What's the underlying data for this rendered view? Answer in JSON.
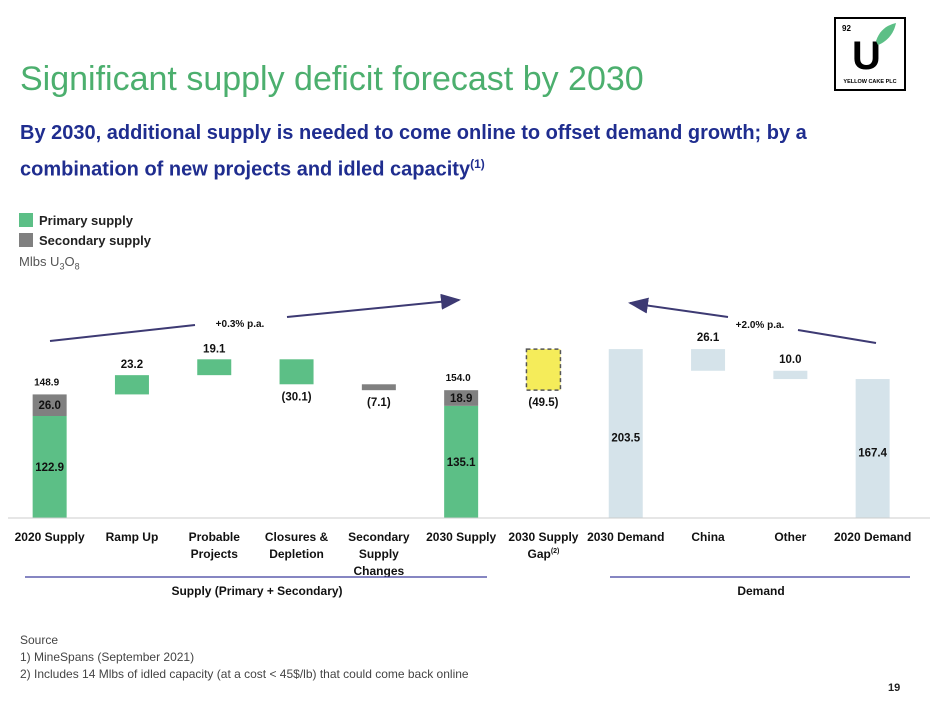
{
  "slide": {
    "title": "Significant supply deficit forecast by 2030",
    "subtitle": "By 2030, additional supply is needed to come online to offset demand growth; by a combination of new projects and idled capacity",
    "subtitle_footnote": "(1)",
    "unit_prefix": "Mlbs U",
    "unit_sub1": "3",
    "unit_mid": "O",
    "unit_sub2": "8",
    "page_number": "19"
  },
  "logo": {
    "number": "92",
    "letter": "U",
    "text": "YELLOW CAKE PLC"
  },
  "legend": [
    {
      "label": "Primary supply",
      "color": "#5cbf86"
    },
    {
      "label": "Secondary supply",
      "color": "#808080"
    }
  ],
  "source": {
    "heading": "Source",
    "notes": [
      "1)  MineSpans (September 2021)",
      "2)  Includes 14 Mlbs of idled capacity (at a cost < 45$/lb) that could come back online"
    ]
  },
  "chart_data": {
    "type": "bar",
    "subtype": "waterfall",
    "categories": [
      "2020 Supply",
      "Ramp Up",
      "Probable Projects",
      "Closures & Depletion",
      "Secondary Supply Changes",
      "2030 Supply",
      "2030 Supply Gap",
      "2030 Demand",
      "China",
      "Other",
      "2020 Demand"
    ],
    "category_superscripts": {
      "2030 Supply Gap": "(2)"
    },
    "bars": [
      {
        "category": "2020 Supply",
        "kind": "total",
        "primary": 122.9,
        "secondary": 26.0,
        "total": 148.9
      },
      {
        "category": "Ramp Up",
        "kind": "change",
        "series": "primary",
        "label": "23.2",
        "from": 148.9,
        "to": 172.1
      },
      {
        "category": "Probable Projects",
        "kind": "change",
        "series": "primary",
        "label": "19.1",
        "from": 172.1,
        "to": 191.2
      },
      {
        "category": "Closures & Depletion",
        "kind": "change",
        "series": "primary",
        "label": "(30.1)",
        "from": 191.2,
        "to": 161.1
      },
      {
        "category": "Secondary Supply Changes",
        "kind": "change",
        "series": "secondary",
        "label": "(7.1)",
        "from": 161.1,
        "to": 154.0
      },
      {
        "category": "2030 Supply",
        "kind": "total",
        "primary": 135.1,
        "secondary": 18.9,
        "total": 154.0
      },
      {
        "category": "2030 Supply Gap",
        "kind": "gap",
        "label": "(49.5)",
        "from": 154.0,
        "to": 203.5
      },
      {
        "category": "2030 Demand",
        "kind": "demand_total",
        "value": 203.5,
        "label": "203.5"
      },
      {
        "category": "China",
        "kind": "demand_change",
        "label": "26.1",
        "from": 177.4,
        "to": 203.5
      },
      {
        "category": "Other",
        "kind": "demand_change",
        "label": "10.0",
        "from": 167.4,
        "to": 177.4
      },
      {
        "category": "2020 Demand",
        "kind": "demand_total",
        "value": 167.4,
        "label": "167.4"
      }
    ],
    "annotations": [
      {
        "text": "+0.3% p.a.",
        "from": "2020 Supply",
        "to": "2030 Supply"
      },
      {
        "text": "+2.0% p.a.",
        "from": "2020 Demand",
        "to": "2030 Demand"
      }
    ],
    "groups": [
      {
        "label": "Supply (Primary + Secondary)",
        "categories": [
          "2020 Supply",
          "Secondary Supply Changes",
          "2030 Supply"
        ]
      },
      {
        "label": "Demand",
        "categories": [
          "2030 Demand",
          "2020 Demand"
        ]
      }
    ],
    "colors": {
      "primary": "#5cbf86",
      "secondary": "#808080",
      "gap": "#f5ec5a",
      "demand": "#d5e3ea",
      "arrow": "#3d3a73",
      "group_line": "#3f3f9e"
    },
    "ylim": [
      0,
      210
    ],
    "legend_position": "top-left",
    "grid": false
  }
}
